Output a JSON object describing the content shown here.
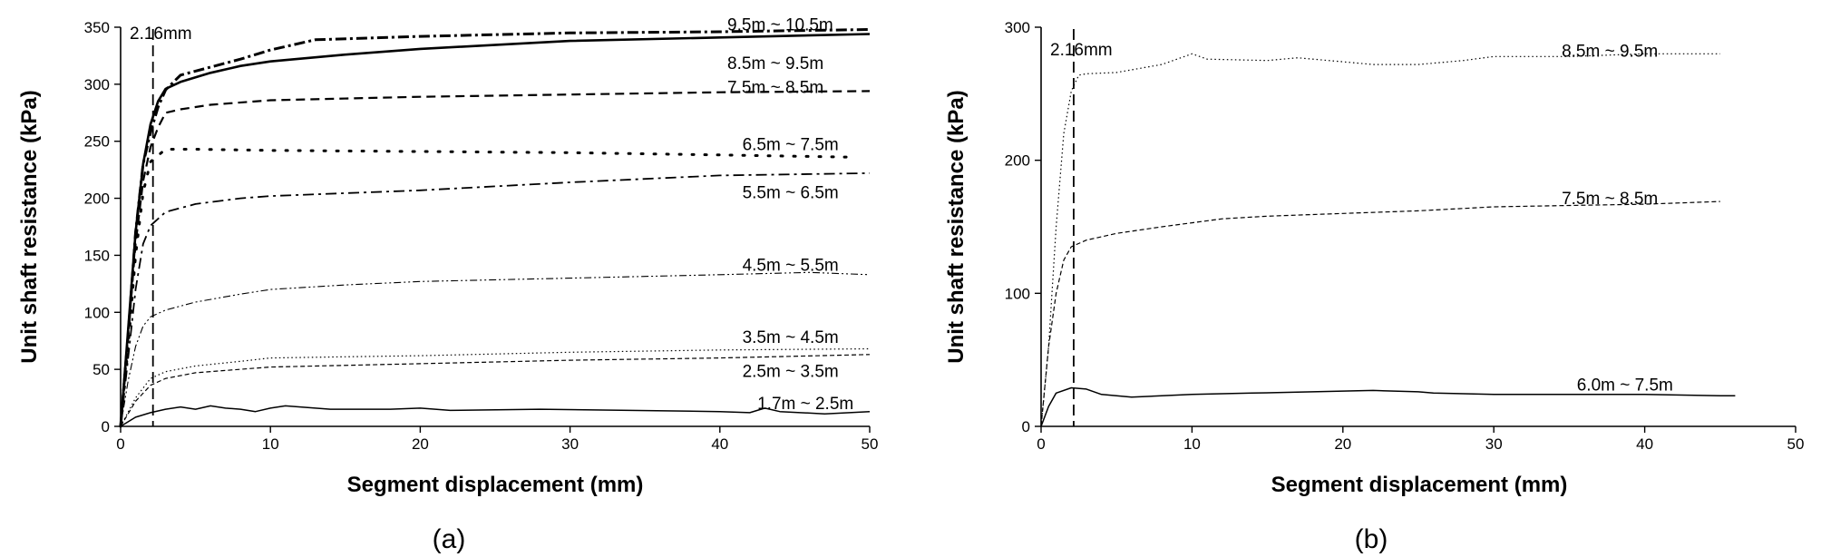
{
  "chart_data": [
    {
      "panel": "(a)",
      "type": "line",
      "title": "",
      "xlabel": "Segment displacement (mm)",
      "ylabel": "Unit shaft resistance (kPa)",
      "xlim": [
        0,
        50
      ],
      "ylim": [
        0,
        350
      ],
      "xticks": [
        0,
        10,
        20,
        30,
        40,
        50
      ],
      "yticks": [
        0,
        50,
        100,
        150,
        200,
        250,
        300,
        350
      ],
      "grid": false,
      "legend": "none",
      "reference_line": {
        "x": 2.16,
        "label": "2.16mm"
      },
      "series": [
        {
          "name": "9.5m ~ 10.5m",
          "label_at": [
            40.5,
            352
          ],
          "style": "dashdot-bold",
          "points": [
            [
              0,
              0
            ],
            [
              0.5,
              80
            ],
            [
              1,
              170
            ],
            [
              1.5,
              230
            ],
            [
              2,
              258
            ],
            [
              2.5,
              280
            ],
            [
              3,
              295
            ],
            [
              4,
              308
            ],
            [
              6,
              315
            ],
            [
              8,
              322
            ],
            [
              10,
              330
            ],
            [
              13,
              339
            ],
            [
              20,
              342
            ],
            [
              30,
              345
            ],
            [
              40,
              346
            ],
            [
              50,
              348
            ]
          ]
        },
        {
          "name": "8.5m ~ 9.5m",
          "label_at": [
            40.5,
            318
          ],
          "style": "solid-bold",
          "points": [
            [
              0,
              0
            ],
            [
              0.5,
              85
            ],
            [
              1,
              170
            ],
            [
              1.5,
              230
            ],
            [
              2,
              265
            ],
            [
              2.5,
              285
            ],
            [
              3,
              296
            ],
            [
              4,
              302
            ],
            [
              6,
              310
            ],
            [
              8,
              316
            ],
            [
              10,
              320
            ],
            [
              15,
              326
            ],
            [
              20,
              331
            ],
            [
              30,
              338
            ],
            [
              40,
              341
            ],
            [
              50,
              344
            ]
          ]
        },
        {
          "name": "7.5m ~ 8.5m",
          "label_at": [
            40.5,
            297
          ],
          "style": "dashed-bold",
          "points": [
            [
              0,
              0
            ],
            [
              0.5,
              80
            ],
            [
              1,
              160
            ],
            [
              1.5,
              215
            ],
            [
              2,
              245
            ],
            [
              2.5,
              262
            ],
            [
              3,
              275
            ],
            [
              4,
              278
            ],
            [
              6,
              282
            ],
            [
              10,
              286
            ],
            [
              20,
              289
            ],
            [
              30,
              291
            ],
            [
              40,
              293
            ],
            [
              50,
              294
            ]
          ]
        },
        {
          "name": "6.5m ~ 7.5m",
          "label_at": [
            41.5,
            247
          ],
          "style": "dotted-bold",
          "points": [
            [
              0,
              0
            ],
            [
              0.5,
              70
            ],
            [
              1,
              150
            ],
            [
              1.5,
              205
            ],
            [
              2,
              232
            ],
            [
              3,
              243
            ],
            [
              5,
              243
            ],
            [
              10,
              242
            ],
            [
              20,
              241
            ],
            [
              30,
              240
            ],
            [
              40,
              238
            ],
            [
              49,
              236
            ]
          ]
        },
        {
          "name": "5.5m ~ 6.5m",
          "label_at": [
            41.5,
            205
          ],
          "style": "dashdot",
          "points": [
            [
              0,
              0
            ],
            [
              0.5,
              60
            ],
            [
              1,
              120
            ],
            [
              1.5,
              160
            ],
            [
              2,
              176
            ],
            [
              3,
              188
            ],
            [
              5,
              195
            ],
            [
              8,
              200
            ],
            [
              10,
              202
            ],
            [
              20,
              207
            ],
            [
              30,
              214
            ],
            [
              40,
              220
            ],
            [
              50,
              222
            ]
          ]
        },
        {
          "name": "4.5m ~ 5.5m",
          "label_at": [
            41.5,
            141
          ],
          "style": "dashdotdot-thin",
          "points": [
            [
              0,
              0
            ],
            [
              0.5,
              40
            ],
            [
              1,
              70
            ],
            [
              1.5,
              88
            ],
            [
              2,
              96
            ],
            [
              3,
              102
            ],
            [
              5,
              109
            ],
            [
              8,
              116
            ],
            [
              10,
              120
            ],
            [
              15,
              124
            ],
            [
              20,
              127
            ],
            [
              30,
              130
            ],
            [
              40,
              133
            ],
            [
              46,
              135
            ],
            [
              50,
              133
            ]
          ]
        },
        {
          "name": "3.5m ~ 4.5m",
          "label_at": [
            41.5,
            78
          ],
          "style": "dotted-thin",
          "points": [
            [
              0,
              0
            ],
            [
              1,
              25
            ],
            [
              2,
              42
            ],
            [
              3,
              48
            ],
            [
              5,
              53
            ],
            [
              8,
              57
            ],
            [
              10,
              60
            ],
            [
              15,
              61
            ],
            [
              20,
              62
            ],
            [
              30,
              65
            ],
            [
              40,
              67
            ],
            [
              50,
              68
            ]
          ]
        },
        {
          "name": "2.5m ~ 3.5m",
          "label_at": [
            41.5,
            48
          ],
          "style": "dashed-thin",
          "points": [
            [
              0,
              0
            ],
            [
              1,
              22
            ],
            [
              2,
              36
            ],
            [
              3,
              42
            ],
            [
              5,
              47
            ],
            [
              8,
              50
            ],
            [
              10,
              52
            ],
            [
              20,
              55
            ],
            [
              30,
              58
            ],
            [
              40,
              60
            ],
            [
              50,
              63
            ]
          ]
        },
        {
          "name": "1.7m ~ 2.5m",
          "label_at": [
            42.5,
            20
          ],
          "style": "solid-thin",
          "points": [
            [
              0,
              0
            ],
            [
              1,
              8
            ],
            [
              2,
              12
            ],
            [
              3,
              15
            ],
            [
              4,
              17
            ],
            [
              5,
              15
            ],
            [
              6,
              18
            ],
            [
              7,
              16
            ],
            [
              8,
              15
            ],
            [
              9,
              13
            ],
            [
              10,
              16
            ],
            [
              11,
              18
            ],
            [
              12,
              17
            ],
            [
              14,
              15
            ],
            [
              18,
              15
            ],
            [
              20,
              16
            ],
            [
              22,
              14
            ],
            [
              28,
              15
            ],
            [
              34,
              14
            ],
            [
              40,
              13
            ],
            [
              42,
              12
            ],
            [
              43,
              16
            ],
            [
              44,
              13
            ],
            [
              47,
              11
            ],
            [
              50,
              13
            ]
          ]
        }
      ]
    },
    {
      "panel": "(b)",
      "type": "line",
      "title": "",
      "xlabel": "Segment displacement (mm)",
      "ylabel": "Unit shaft resistance (kPa)",
      "xlim": [
        0,
        50
      ],
      "ylim": [
        0,
        300
      ],
      "xticks": [
        0,
        10,
        20,
        30,
        40,
        50
      ],
      "yticks": [
        0,
        100,
        200,
        300
      ],
      "grid": false,
      "legend": "none",
      "reference_line": {
        "x": 2.16,
        "label": "2.16mm"
      },
      "series": [
        {
          "name": "8.5m ~ 9.5m",
          "label_at": [
            34.5,
            282
          ],
          "style": "dotted-thin",
          "points": [
            [
              0,
              0
            ],
            [
              0.5,
              60
            ],
            [
              1,
              150
            ],
            [
              1.5,
              220
            ],
            [
              2,
              252
            ],
            [
              2.5,
              264
            ],
            [
              3,
              265
            ],
            [
              5,
              266
            ],
            [
              8,
              272
            ],
            [
              10,
              280
            ],
            [
              11,
              276
            ],
            [
              15,
              275
            ],
            [
              17,
              277
            ],
            [
              20,
              274
            ],
            [
              22,
              272
            ],
            [
              25,
              272
            ],
            [
              28,
              275
            ],
            [
              30,
              278
            ],
            [
              35,
              278
            ],
            [
              40,
              280
            ],
            [
              45,
              280
            ]
          ]
        },
        {
          "name": "7.5m ~ 8.5m",
          "label_at": [
            34.5,
            171
          ],
          "style": "dashed-thin",
          "points": [
            [
              0,
              0
            ],
            [
              0.5,
              60
            ],
            [
              1,
              100
            ],
            [
              1.5,
              125
            ],
            [
              2,
              135
            ],
            [
              3,
              140
            ],
            [
              5,
              145
            ],
            [
              8,
              150
            ],
            [
              10,
              153
            ],
            [
              12,
              156
            ],
            [
              15,
              158
            ],
            [
              20,
              160
            ],
            [
              25,
              162
            ],
            [
              30,
              165
            ],
            [
              35,
              166
            ],
            [
              40,
              167
            ],
            [
              45,
              169
            ]
          ]
        },
        {
          "name": "6.0m ~ 7.5m",
          "label_at": [
            35.5,
            31
          ],
          "style": "solid-thin",
          "points": [
            [
              0,
              0
            ],
            [
              0.5,
              15
            ],
            [
              1,
              25
            ],
            [
              2,
              29
            ],
            [
              3,
              28
            ],
            [
              4,
              24
            ],
            [
              6,
              22
            ],
            [
              8,
              23
            ],
            [
              10,
              24
            ],
            [
              14,
              25
            ],
            [
              18,
              26
            ],
            [
              22,
              27
            ],
            [
              25,
              26
            ],
            [
              26,
              25
            ],
            [
              30,
              24
            ],
            [
              35,
              24
            ],
            [
              40,
              24
            ],
            [
              45,
              23
            ],
            [
              46,
              23
            ]
          ]
        }
      ]
    }
  ],
  "panel_a": {
    "ylabel": "Unit shaft resistance (kPa)",
    "xlabel": "Segment displacement (mm)",
    "annotation": "2.16mm",
    "panel_label": "(a)"
  },
  "panel_b": {
    "ylabel": "Unit shaft resistance (kPa)",
    "xlabel": "Segment displacement (mm)",
    "annotation": "2.16mm",
    "panel_label": "(b)"
  }
}
